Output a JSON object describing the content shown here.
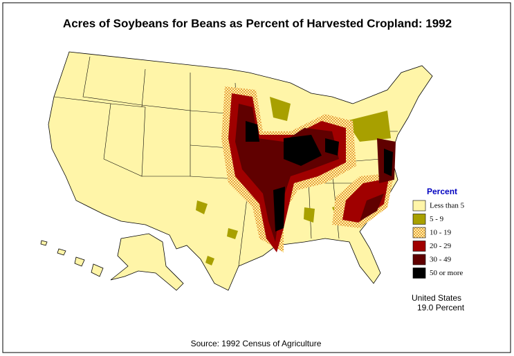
{
  "title": "Acres of Soybeans for Beans as Percent of Harvested Cropland:  1992",
  "legend": {
    "title": "Percent",
    "items": [
      {
        "label": "Less than 5",
        "color": "#fff5a8"
      },
      {
        "label": "5  -  9",
        "color": "#a8a000"
      },
      {
        "label": "10  -  19",
        "color": "#e8a040"
      },
      {
        "label": "20  -  29",
        "color": "#a00000"
      },
      {
        "label": "30  -  49",
        "color": "#600000"
      },
      {
        "label": "50 or more",
        "color": "#000000"
      }
    ]
  },
  "summary": {
    "line1": "United States",
    "line2": "19.0 Percent"
  },
  "source": "Source:  1992 Census of Agriculture"
}
